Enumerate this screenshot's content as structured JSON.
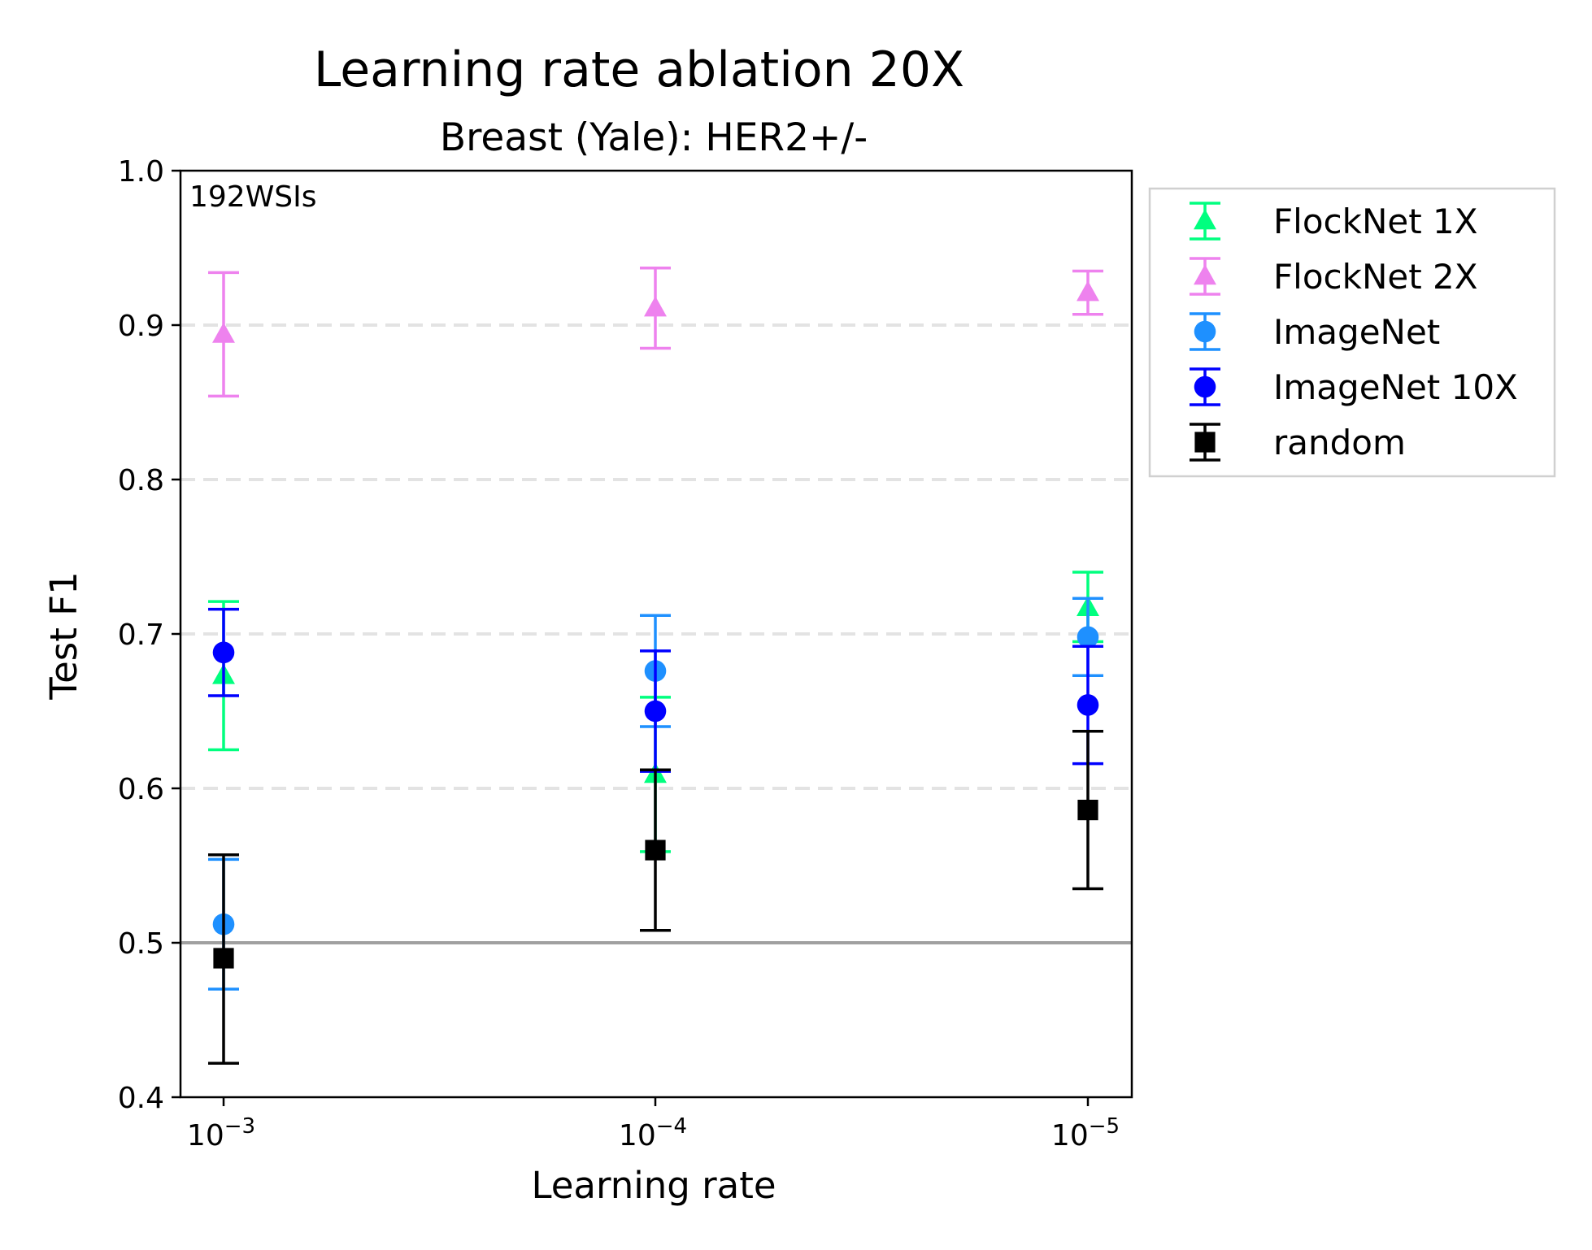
{
  "chart_data": {
    "type": "scatter",
    "title": "Learning rate ablation 20X",
    "subtitle": "Breast (Yale): HER2+/-",
    "xlabel": "Learning rate",
    "ylabel": "Test F1",
    "annotation": "192WSIs",
    "categories": [
      {
        "base": "10",
        "exp": "−3"
      },
      {
        "base": "10",
        "exp": "−4"
      },
      {
        "base": "10",
        "exp": "−5"
      }
    ],
    "ylim": [
      0.4,
      1.0
    ],
    "yticks": [
      "0.4",
      "0.5",
      "0.6",
      "0.7",
      "0.8",
      "0.9",
      "1.0"
    ],
    "grid_lines": [
      0.6,
      0.7,
      0.8,
      0.9
    ],
    "reference_line": 0.5,
    "legend_position": "outside-right",
    "series": [
      {
        "name": "FlockNet 1X",
        "color": "#00ff7f",
        "marker": "triangle",
        "values": [
          0.673,
          0.609,
          0.717
        ],
        "lower": [
          0.625,
          0.559,
          0.695
        ],
        "upper": [
          0.721,
          0.659,
          0.74
        ]
      },
      {
        "name": "FlockNet 2X",
        "color": "#ee82ee",
        "marker": "triangle",
        "values": [
          0.894,
          0.911,
          0.921
        ],
        "lower": [
          0.854,
          0.885,
          0.907
        ],
        "upper": [
          0.934,
          0.937,
          0.935
        ]
      },
      {
        "name": "ImageNet",
        "color": "#1e90ff",
        "marker": "circle",
        "values": [
          0.512,
          0.676,
          0.698
        ],
        "lower": [
          0.47,
          0.64,
          0.673
        ],
        "upper": [
          0.554,
          0.712,
          0.723
        ]
      },
      {
        "name": "ImageNet 10X",
        "color": "#0000ff",
        "marker": "circle",
        "values": [
          0.688,
          0.65,
          0.654
        ],
        "lower": [
          0.66,
          0.611,
          0.616
        ],
        "upper": [
          0.716,
          0.689,
          0.692
        ]
      },
      {
        "name": "random",
        "color": "#000000",
        "marker": "square",
        "values": [
          0.49,
          0.56,
          0.586
        ],
        "lower": [
          0.422,
          0.508,
          0.535
        ],
        "upper": [
          0.557,
          0.612,
          0.637
        ]
      }
    ]
  }
}
